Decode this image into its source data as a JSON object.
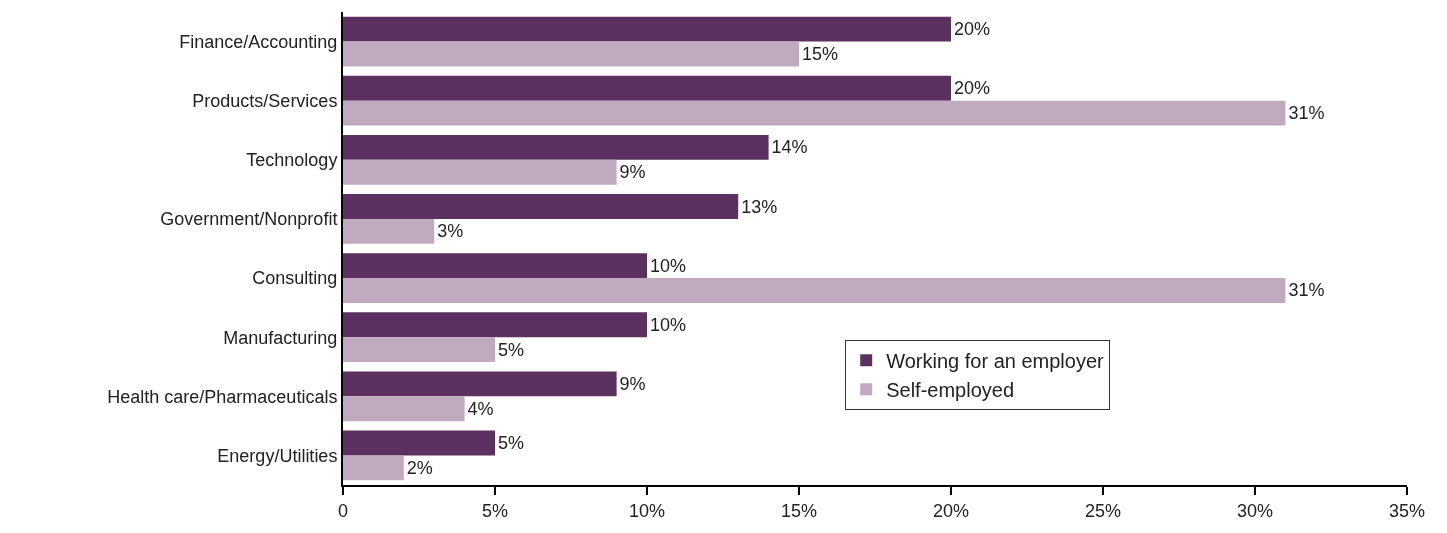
{
  "chart_data": {
    "type": "bar",
    "orientation": "horizontal",
    "categories": [
      "Finance/Accounting",
      "Products/Services",
      "Technology",
      "Government/Nonprofit",
      "Consulting",
      "Manufacturing",
      "Health care/Pharmaceuticals",
      "Energy/Utilities"
    ],
    "series": [
      {
        "name": "Working for an employer",
        "color": "#5c3160",
        "values": [
          20,
          20,
          14,
          13,
          10,
          10,
          9,
          5
        ],
        "value_labels": [
          "20%",
          "20%",
          "14%",
          "13%",
          "10%",
          "10%",
          "9%",
          "5%"
        ]
      },
      {
        "name": "Self-employed",
        "color": "#bfaabf",
        "values": [
          15,
          31,
          9,
          3,
          31,
          5,
          4,
          2
        ],
        "value_labels": [
          "15%",
          "31%",
          "9%",
          "3%",
          "31%",
          "5%",
          "4%",
          "2%"
        ]
      }
    ],
    "xlim": [
      0,
      35
    ],
    "xticks": [
      0,
      {
        "value": 5,
        "label": "5%"
      },
      {
        "value": 10,
        "label": "10%"
      },
      {
        "value": 15,
        "label": "15%"
      },
      {
        "value": 20,
        "label": "20%"
      },
      {
        "value": 25,
        "label": "25%"
      },
      {
        "value": 30,
        "label": "30%"
      },
      {
        "value": 35,
        "label": "35%"
      }
    ],
    "legend": "bottom right"
  }
}
